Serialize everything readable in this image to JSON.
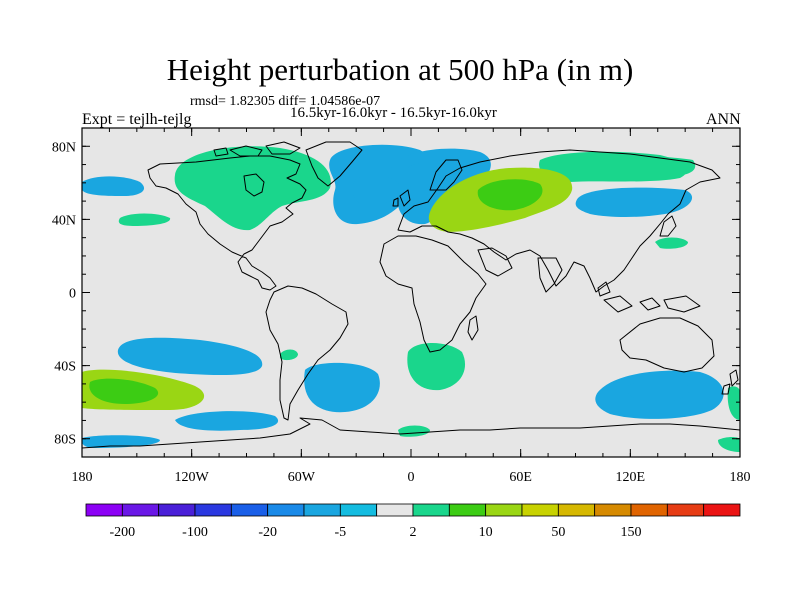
{
  "title": "Height perturbation at 500 hPa (in m)",
  "stats_text": "rmsd= 1.82305 diff= 1.04586e-07",
  "period_text": "16.5kyr-16.0kyr - 16.5kyr-16.0kyr",
  "experiment_text": "Expt = tejlh-tejlg",
  "season_text": "ANN",
  "map": {
    "projection": "cylindrical-equidistant",
    "lon_range": [
      -180,
      180
    ],
    "lat_range": [
      -90,
      90
    ],
    "lat_ticks": [
      {
        "label": "80N",
        "lat": 80
      },
      {
        "label": "40N",
        "lat": 40
      },
      {
        "label": "0",
        "lat": 0
      },
      {
        "label": "40S",
        "lat": -40
      },
      {
        "label": "80S",
        "lat": -80
      }
    ],
    "lon_ticks": [
      {
        "label": "180",
        "lon": -180
      },
      {
        "label": "120W",
        "lon": -120
      },
      {
        "label": "60W",
        "lon": -60
      },
      {
        "label": "0",
        "lon": 0
      },
      {
        "label": "60E",
        "lon": 60
      },
      {
        "label": "120E",
        "lon": 120
      },
      {
        "label": "180",
        "lon": 180
      }
    ],
    "background_color": "#e6e6e6",
    "coastline_color": "#000000"
  },
  "anomaly_regions": [
    {
      "name": "north-america-positive",
      "lon": -110,
      "lat": 67,
      "value": 2
    },
    {
      "name": "north-atlantic-negative",
      "lon": -35,
      "lat": 62,
      "value": -5
    },
    {
      "name": "northern-europe-negative",
      "lon": 5,
      "lat": 72,
      "value": -5
    },
    {
      "name": "siberia-positive",
      "lon": 100,
      "lat": 75,
      "value": 2
    },
    {
      "name": "russia-positive",
      "lon": 55,
      "lat": 55,
      "value": 10
    },
    {
      "name": "north-pacific-negative",
      "lon": -165,
      "lat": 58,
      "value": -5
    },
    {
      "name": "east-asia-negative",
      "lon": 120,
      "lat": 50,
      "value": -5
    },
    {
      "name": "southeast-pacific-negative",
      "lon": -130,
      "lat": -32,
      "value": -5
    },
    {
      "name": "southwest-pacific-positive",
      "lon": -160,
      "lat": -50,
      "value": 10
    },
    {
      "name": "south-atlantic-negative",
      "lon": -25,
      "lat": -40,
      "value": -5
    },
    {
      "name": "south-indian-positive",
      "lon": 10,
      "lat": -35,
      "value": 2
    },
    {
      "name": "southern-ocean-negative",
      "lon": 140,
      "lat": -53,
      "value": -5
    }
  ],
  "colorbar": {
    "colors": [
      "#8c00f5",
      "#6a17e6",
      "#4a20d8",
      "#2a38e0",
      "#1a5fe8",
      "#1a8ae8",
      "#1aa6e0",
      "#14bce0",
      "#e6e6e6",
      "#1ad68c",
      "#3ccc14",
      "#9ad614",
      "#c8d200",
      "#d6b800",
      "#d68a00",
      "#e06400",
      "#e63c14",
      "#eb1414"
    ],
    "labels": [
      {
        "text": "-200",
        "index": 1
      },
      {
        "text": "-100",
        "index": 3
      },
      {
        "text": "-20",
        "index": 5
      },
      {
        "text": "-5",
        "index": 7
      },
      {
        "text": "2",
        "index": 9
      },
      {
        "text": "10",
        "index": 11
      },
      {
        "text": "50",
        "index": 13
      },
      {
        "text": "150",
        "index": 15
      }
    ]
  }
}
